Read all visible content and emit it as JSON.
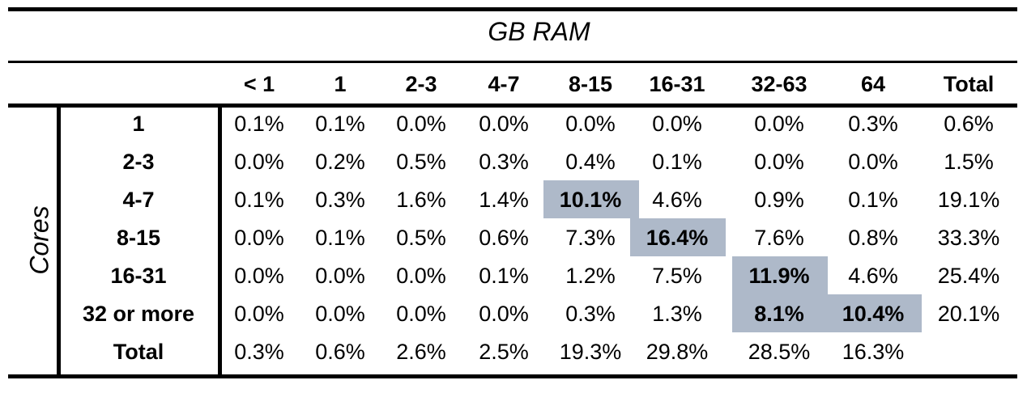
{
  "chart_data": {
    "type": "table",
    "title": "GB RAM",
    "ylabel": "Cores",
    "column_headers": [
      "< 1",
      "1",
      "2-3",
      "4-7",
      "8-15",
      "16-31",
      "32-63",
      "64",
      "Total"
    ],
    "rows": [
      {
        "label": "1",
        "values": [
          "0.1%",
          "0.1%",
          "0.0%",
          "0.0%",
          "0.0%",
          "0.0%",
          "0.0%",
          "0.3%",
          "0.6%"
        ]
      },
      {
        "label": "2-3",
        "values": [
          "0.0%",
          "0.2%",
          "0.5%",
          "0.3%",
          "0.4%",
          "0.1%",
          "0.0%",
          "0.0%",
          "1.5%"
        ]
      },
      {
        "label": "4-7",
        "values": [
          "0.1%",
          "0.3%",
          "1.6%",
          "1.4%",
          "10.1%",
          "4.6%",
          "0.9%",
          "0.1%",
          "19.1%"
        ]
      },
      {
        "label": "8-15",
        "values": [
          "0.0%",
          "0.1%",
          "0.5%",
          "0.6%",
          "7.3%",
          "16.4%",
          "7.6%",
          "0.8%",
          "33.3%"
        ]
      },
      {
        "label": "16-31",
        "values": [
          "0.0%",
          "0.0%",
          "0.0%",
          "0.1%",
          "1.2%",
          "7.5%",
          "11.9%",
          "4.6%",
          "25.4%"
        ]
      },
      {
        "label": "32 or more",
        "values": [
          "0.0%",
          "0.0%",
          "0.0%",
          "0.0%",
          "0.3%",
          "1.3%",
          "8.1%",
          "10.4%",
          "20.1%"
        ]
      },
      {
        "label": "Total",
        "values": [
          "0.3%",
          "0.6%",
          "2.6%",
          "2.5%",
          "19.3%",
          "29.8%",
          "28.5%",
          "16.3%",
          ""
        ]
      }
    ],
    "highlighted": [
      {
        "row": 2,
        "col": 4,
        "bold": true
      },
      {
        "row": 3,
        "col": 5,
        "bold": true
      },
      {
        "row": 4,
        "col": 6,
        "bold": true
      },
      {
        "row": 5,
        "col": 6,
        "bold": true
      },
      {
        "row": 5,
        "col": 7,
        "bold": true
      }
    ],
    "highlight_color": "#aeb9c9"
  }
}
